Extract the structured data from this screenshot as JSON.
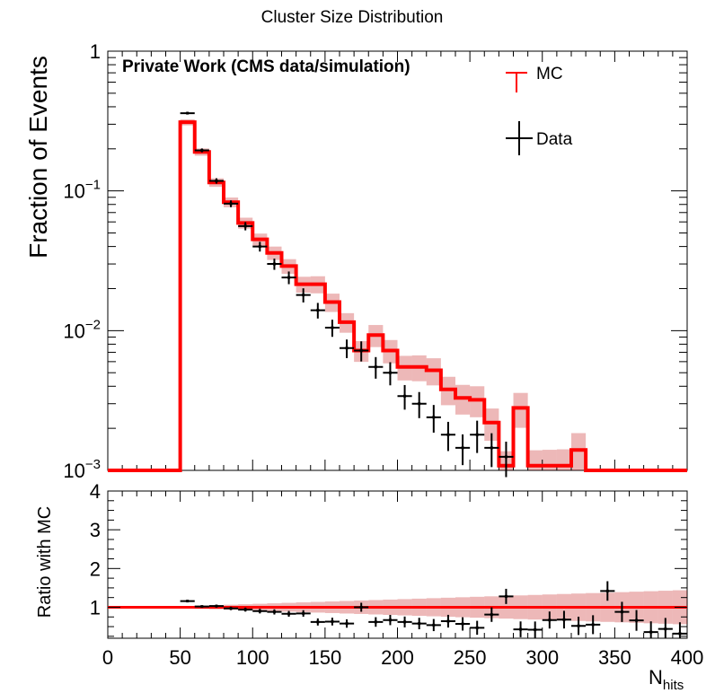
{
  "chart_data": [
    {
      "type": "line",
      "title": "Cluster Size Distribution",
      "ylabel": "Fraction of Events",
      "xlabel": "",
      "yscale": "log",
      "ylim": [
        0.001,
        1
      ],
      "xlim": [
        0,
        400
      ],
      "yticks": [
        {
          "base": "1",
          "exp": ""
        },
        {
          "base": "10",
          "exp": "−1"
        },
        {
          "base": "10",
          "exp": "−2"
        },
        {
          "base": "10",
          "exp": "−3"
        }
      ],
      "annotation": "Private Work (CMS data/simulation)",
      "legend": {
        "placement": "top-right"
      },
      "series": [
        {
          "name": "MC",
          "color": "#ff0000",
          "style": "step-with-error-band",
          "bin_edges": [
            0,
            10,
            20,
            30,
            40,
            50,
            60,
            70,
            80,
            90,
            100,
            110,
            120,
            130,
            140,
            150,
            160,
            170,
            180,
            190,
            200,
            210,
            220,
            230,
            240,
            250,
            260,
            270,
            280,
            290,
            300,
            310,
            320,
            330,
            340,
            350,
            360,
            370,
            380,
            390,
            400
          ],
          "values": [
            0.001,
            0.001,
            0.001,
            0.001,
            0.001,
            0.31,
            0.19,
            0.115,
            0.083,
            0.059,
            0.045,
            0.036,
            0.029,
            0.0215,
            0.0215,
            0.016,
            0.0115,
            0.0072,
            0.0093,
            0.0072,
            0.0055,
            0.0055,
            0.0052,
            0.0038,
            0.0033,
            0.0032,
            0.0022,
            0.00108,
            0.0028,
            0.00108,
            0.00108,
            0.00108,
            0.0014,
            0.001,
            0.001,
            0.001,
            0.001,
            0.001,
            0.001,
            0.001
          ]
        },
        {
          "name": "Data",
          "color": "#000000",
          "style": "points-with-errors",
          "x": [
            55,
            65,
            75,
            85,
            95,
            105,
            115,
            125,
            135,
            145,
            155,
            165,
            175,
            185,
            195,
            205,
            215,
            225,
            235,
            245,
            255,
            265,
            275
          ],
          "y": [
            0.36,
            0.195,
            0.118,
            0.081,
            0.056,
            0.04,
            0.03,
            0.024,
            0.018,
            0.014,
            0.0105,
            0.0075,
            0.0072,
            0.0055,
            0.005,
            0.0034,
            0.003,
            0.0024,
            0.0018,
            0.00145,
            0.0018,
            0.00145,
            0.00125
          ]
        }
      ]
    },
    {
      "type": "line",
      "title": "",
      "ylabel": "Ratio with MC",
      "xlabel": "N",
      "xlabel_sub": "hits",
      "ylim": [
        0.2,
        4
      ],
      "xlim": [
        0,
        400
      ],
      "yticks": [
        "1",
        "2",
        "3",
        "4"
      ],
      "xticks": [
        "0",
        "50",
        "100",
        "150",
        "200",
        "250",
        "300",
        "350",
        "400"
      ],
      "series": [
        {
          "name": "MC",
          "color": "#ff0000",
          "style": "line-with-error-band",
          "y": 1
        },
        {
          "name": "Data",
          "color": "#000000",
          "style": "points-with-errors",
          "x": [
            55,
            65,
            75,
            85,
            95,
            105,
            115,
            125,
            135,
            145,
            155,
            165,
            175,
            185,
            195,
            205,
            215,
            225,
            235,
            245,
            255,
            265,
            275,
            285,
            295,
            305,
            315,
            325,
            335,
            345,
            355,
            365,
            375,
            385,
            395
          ],
          "y": [
            1.16,
            1.02,
            1.03,
            0.97,
            0.94,
            0.9,
            0.88,
            0.83,
            0.84,
            0.62,
            0.63,
            0.58,
            1.0,
            0.62,
            0.67,
            0.62,
            0.58,
            0.54,
            0.64,
            0.57,
            0.47,
            0.81,
            1.28,
            0.43,
            0.42,
            0.67,
            0.68,
            0.52,
            0.55,
            1.42,
            0.88,
            0.66,
            0.36,
            0.44,
            0.32
          ]
        }
      ]
    }
  ]
}
